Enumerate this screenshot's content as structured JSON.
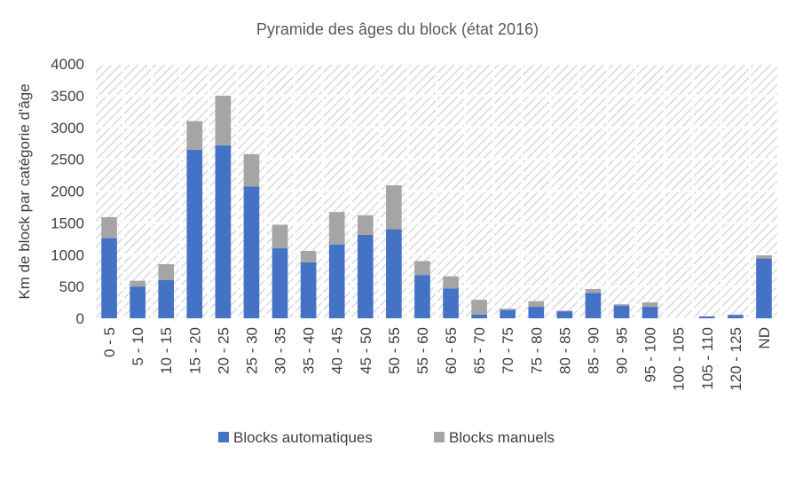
{
  "chart_data": {
    "type": "bar",
    "stacked": true,
    "title": "Pyramide des âges du block (état 2016)",
    "xlabel": "",
    "ylabel": "Km de block par catégorie d'âge",
    "ylim": [
      0,
      4000
    ],
    "yticks": [
      0,
      500,
      1000,
      1500,
      2000,
      2500,
      3000,
      3500,
      4000
    ],
    "grid": true,
    "legend_position": "bottom",
    "categories": [
      "0 - 5",
      "5 - 10",
      "10 - 15",
      "15 - 20",
      "20 - 25",
      "25 - 30",
      "30 - 35",
      "35 - 40",
      "40 - 45",
      "45 - 50",
      "50 - 55",
      "55 - 60",
      "60 - 65",
      "65 - 70",
      "70 - 75",
      "75 - 80",
      "80 - 85",
      "85 - 90",
      "90 - 95",
      "95 - 100",
      "100 - 105",
      "105 - 110",
      "120 - 125",
      "ND"
    ],
    "series": [
      {
        "name": "Blocks automatiques",
        "color": "#4472C4",
        "values": [
          1260,
          500,
          600,
          2650,
          2720,
          2070,
          1100,
          880,
          1160,
          1310,
          1400,
          680,
          470,
          60,
          130,
          180,
          110,
          400,
          200,
          180,
          0,
          30,
          50,
          940
        ]
      },
      {
        "name": "Blocks manuels",
        "color": "#A5A5A5",
        "values": [
          330,
          90,
          250,
          450,
          780,
          510,
          370,
          180,
          510,
          310,
          690,
          220,
          190,
          230,
          20,
          90,
          10,
          60,
          20,
          70,
          0,
          0,
          10,
          50
        ]
      }
    ]
  }
}
